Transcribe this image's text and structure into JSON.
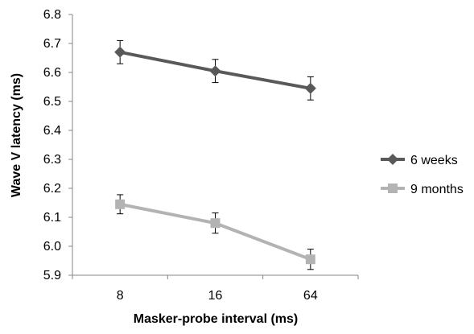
{
  "chart_data": {
    "type": "line",
    "xlabel": "Masker-probe interval (ms)",
    "ylabel": "Wave V latency (ms)",
    "categories": [
      "8",
      "16",
      "64"
    ],
    "ylim": [
      5.9,
      6.8
    ],
    "yticks": [
      "5.9",
      "6.0",
      "6.1",
      "6.2",
      "6.3",
      "6.4",
      "6.5",
      "6.6",
      "6.7",
      "6.8"
    ],
    "grid": false,
    "legend_position": "right",
    "series": [
      {
        "name": "6 weeks",
        "values": [
          6.67,
          6.605,
          6.545
        ],
        "error": [
          0.04,
          0.04,
          0.04
        ],
        "color": "#595959",
        "marker": "diamond"
      },
      {
        "name": "9 months",
        "values": [
          6.145,
          6.08,
          5.955
        ],
        "error": [
          0.033,
          0.035,
          0.035
        ],
        "color": "#b3b3b3",
        "marker": "square"
      }
    ]
  }
}
